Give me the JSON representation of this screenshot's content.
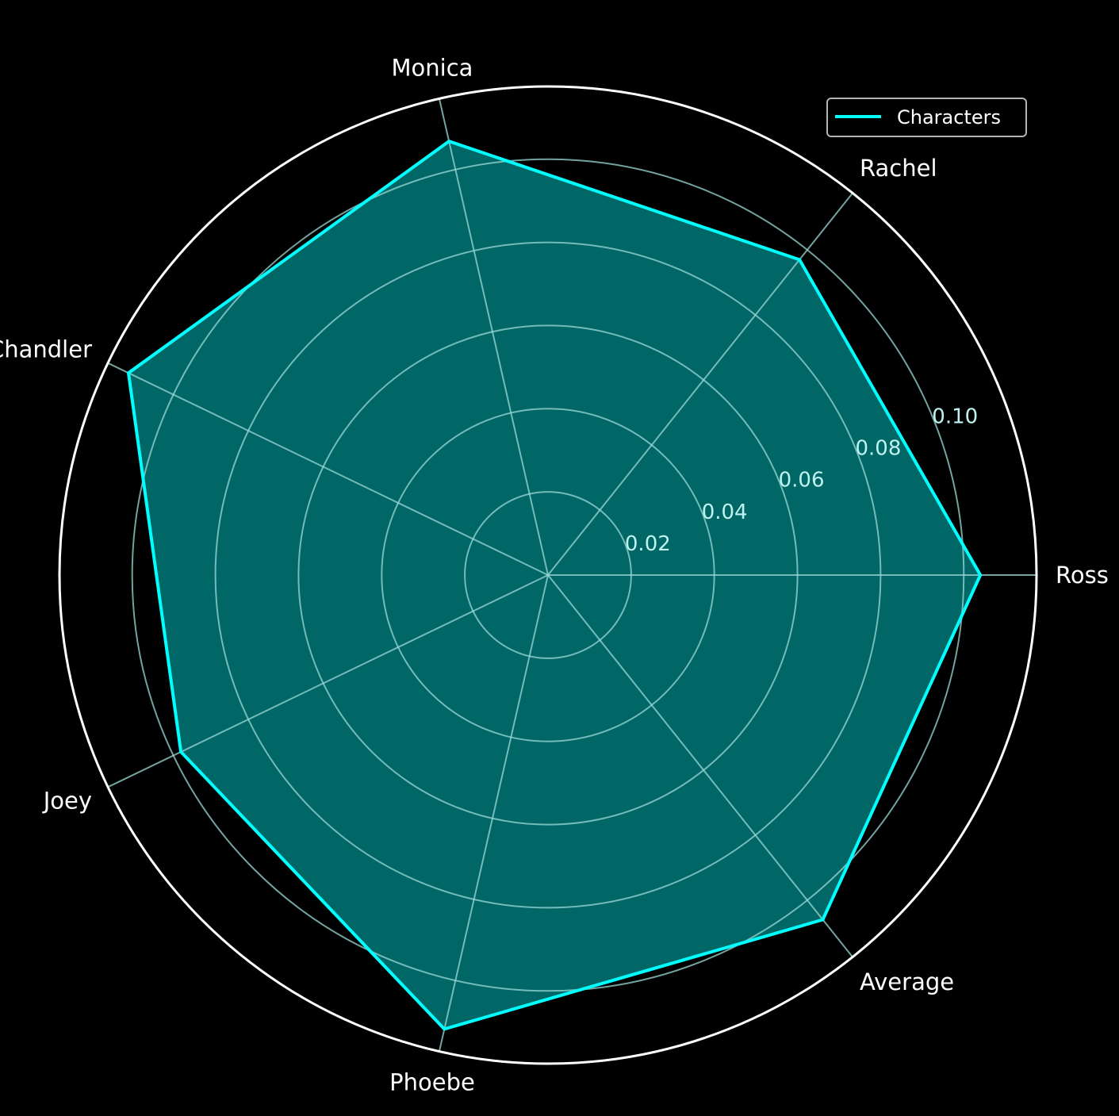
{
  "chart_data": {
    "type": "radar",
    "categories": [
      "Ross",
      "Rachel",
      "Monica",
      "Chandler",
      "Joey",
      "Phoebe",
      "Average"
    ],
    "series": [
      {
        "name": "Characters",
        "values": [
          0.104,
          0.097,
          0.107,
          0.112,
          0.098,
          0.112,
          0.106
        ]
      }
    ],
    "radial_ticks": [
      0.02,
      0.04,
      0.06,
      0.08,
      0.1
    ],
    "radial_tick_labels": [
      "0.02",
      "0.04",
      "0.06",
      "0.08",
      "0.10"
    ],
    "rlim": [
      0,
      0.1175
    ],
    "grid": true,
    "legend_position": "top-right",
    "colors": {
      "background": "#000000",
      "line": "#00ffff",
      "fill": "#006666",
      "grid": "#9ad9d6",
      "outer_ring": "#ffffff",
      "label": "#ffffff",
      "tick_label": "#bdf3f0"
    }
  }
}
